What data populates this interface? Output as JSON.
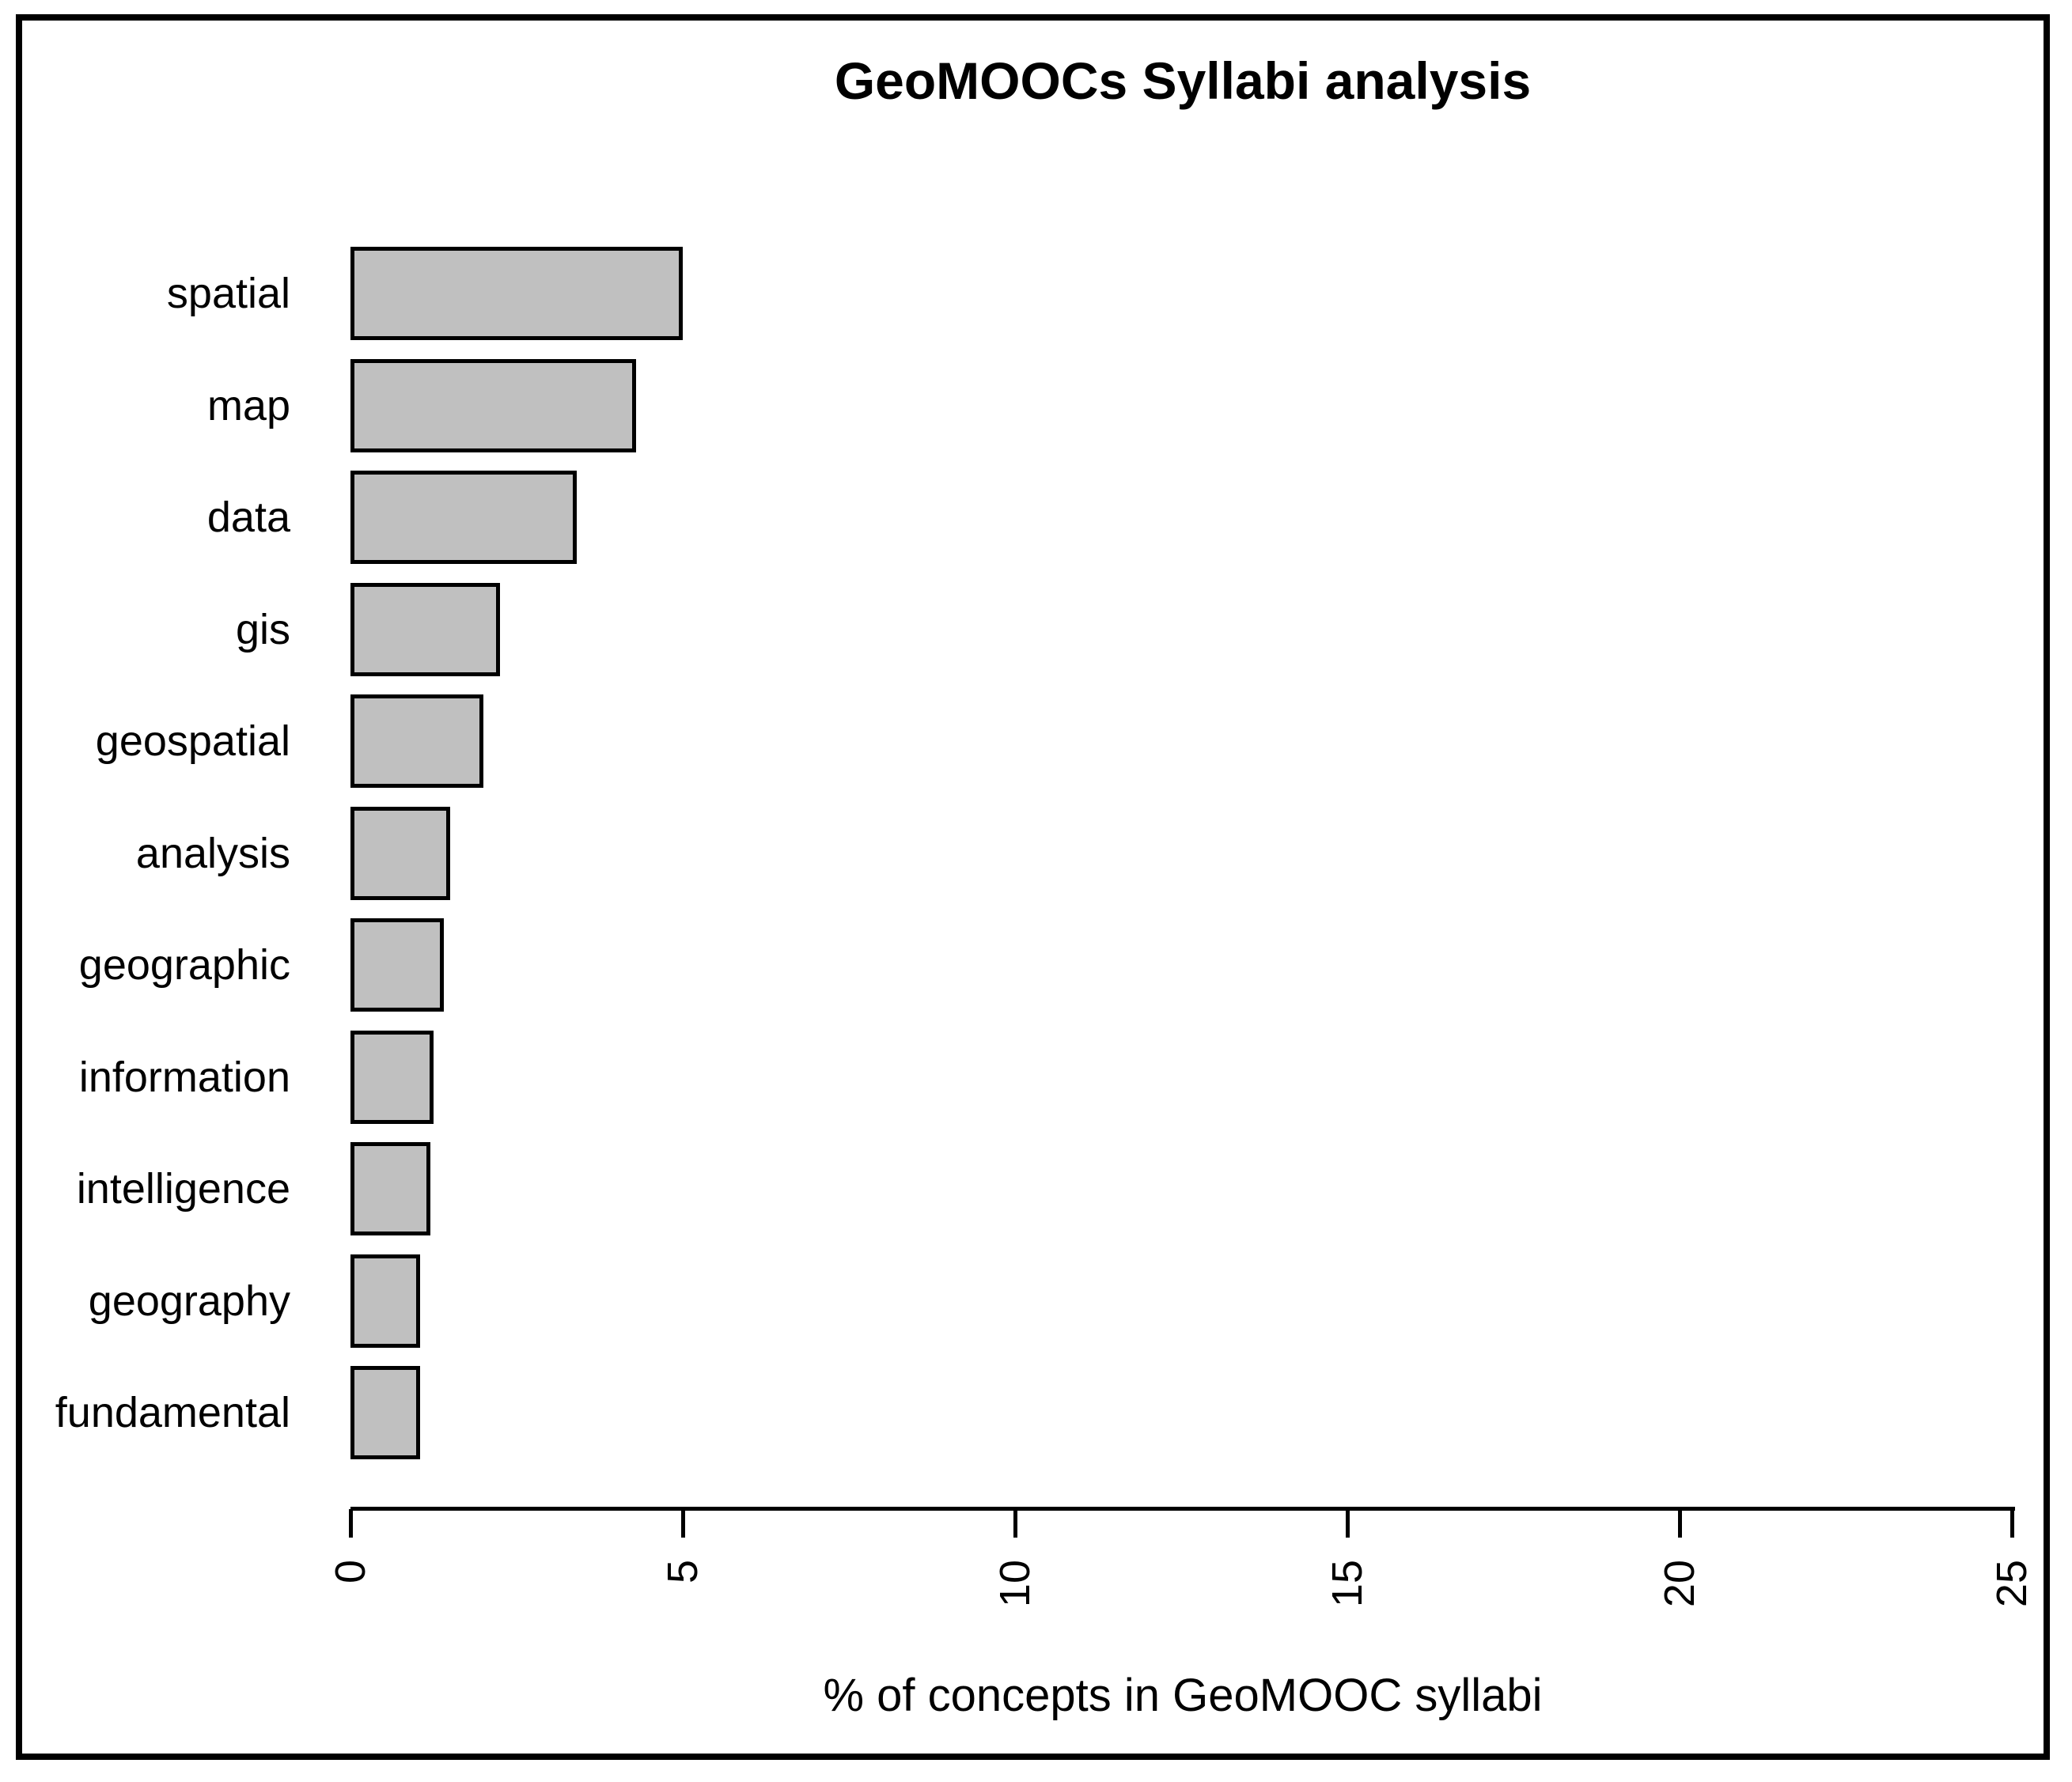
{
  "window": {
    "background": "#ffffff",
    "frame_border_color": "#000000"
  },
  "chart_data": {
    "type": "bar",
    "orientation": "horizontal",
    "title": "GeoMOOCs Syllabi analysis",
    "xlabel": "% of concepts in GeoMOOC syllabi",
    "ylabel": "",
    "categories": [
      "spatial",
      "map",
      "data",
      "gis",
      "geospatial",
      "analysis",
      "geographic",
      "information",
      "intelligence",
      "geography",
      "fundamental"
    ],
    "values": [
      5.0,
      4.3,
      3.4,
      2.25,
      2.0,
      1.5,
      1.4,
      1.25,
      1.2,
      1.05,
      1.05
    ],
    "xlim": [
      0,
      25
    ],
    "xticks": [
      0,
      5,
      10,
      15,
      20,
      25
    ],
    "xtick_label_rotation_deg": -90,
    "grid": false,
    "legend": "none",
    "colors": {
      "bar_fill": "#c0c0c0",
      "bar_border": "#000000",
      "axis": "#000000",
      "text": "#000000",
      "background": "#ffffff"
    }
  }
}
